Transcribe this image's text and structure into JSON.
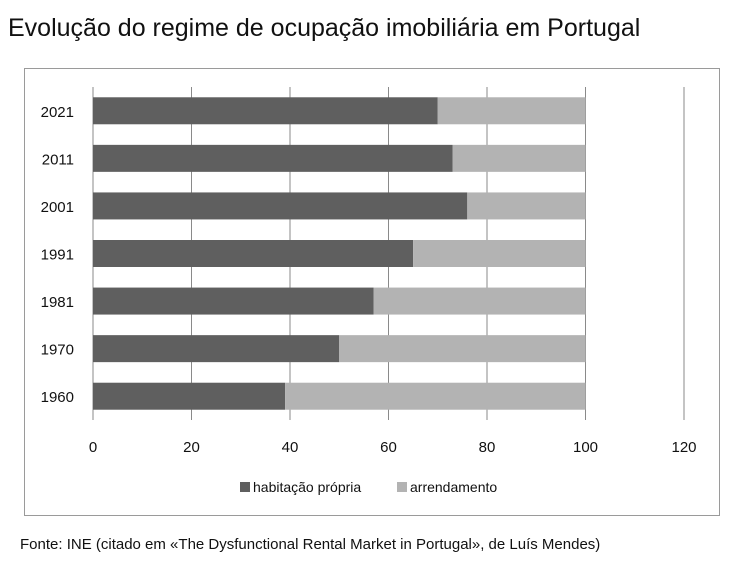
{
  "title": "Evolução do regime de ocupação imobiliária em Portugal",
  "source": "Fonte: INE (citado em «The Dysfunctional Rental Market in Portugal», de Luís Mendes)",
  "chart_data": {
    "type": "bar",
    "orientation": "horizontal",
    "stacked": true,
    "categories": [
      "1960",
      "1970",
      "1981",
      "1991",
      "2001",
      "2011",
      "2021"
    ],
    "series": [
      {
        "name": "habitação própria",
        "values": [
          39,
          50,
          57,
          65,
          76,
          73,
          70
        ],
        "color": "#5f5f5f"
      },
      {
        "name": "arrendamento",
        "values": [
          61,
          50,
          43,
          35,
          24,
          27,
          30
        ],
        "color": "#b3b3b3"
      }
    ],
    "xlim": [
      0,
      120
    ],
    "xticks": [
      "0",
      "20",
      "40",
      "60",
      "80",
      "100",
      "120"
    ],
    "grid": "vertical",
    "legend": "bottom"
  }
}
